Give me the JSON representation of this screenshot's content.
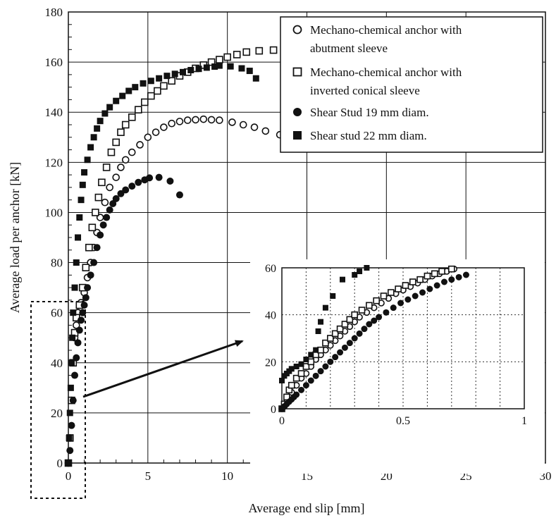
{
  "chart_data": [
    {
      "type": "scatter",
      "xlabel": "Average end slip [mm]",
      "ylabel": "Average load per anchor [kN]",
      "xlim": [
        0,
        30
      ],
      "ylim": [
        0,
        180
      ],
      "x_ticks": [
        "0",
        "5",
        "10",
        "15",
        "20",
        "25",
        "30"
      ],
      "y_ticks": [
        "0",
        "20",
        "40",
        "60",
        "80",
        "100",
        "120",
        "140",
        "160",
        "180"
      ],
      "grid": true,
      "legend_position": "top-right",
      "series": [
        {
          "name": "Mechano-chemical anchor with abutment sleeve",
          "marker": "open-circle",
          "points": [
            [
              0,
              0
            ],
            [
              0.1,
              10
            ],
            [
              0.2,
              25
            ],
            [
              0.3,
              40
            ],
            [
              0.4,
              50
            ],
            [
              0.5,
              55
            ],
            [
              0.6,
              60
            ],
            [
              0.8,
              64
            ],
            [
              1.0,
              68
            ],
            [
              1.2,
              74
            ],
            [
              1.4,
              80
            ],
            [
              1.6,
              86
            ],
            [
              1.8,
              92
            ],
            [
              2.0,
              98
            ],
            [
              2.3,
              104
            ],
            [
              2.6,
              110
            ],
            [
              3.0,
              114
            ],
            [
              3.3,
              118
            ],
            [
              3.6,
              121
            ],
            [
              4.0,
              124
            ],
            [
              4.5,
              127
            ],
            [
              5.0,
              130
            ],
            [
              5.5,
              132
            ],
            [
              6.0,
              134
            ],
            [
              6.5,
              135.5
            ],
            [
              7.0,
              136.3
            ],
            [
              7.5,
              136.8
            ],
            [
              8.0,
              137
            ],
            [
              8.5,
              137.2
            ],
            [
              9.0,
              137
            ],
            [
              9.5,
              136.8
            ],
            [
              10.3,
              136
            ],
            [
              11.0,
              135
            ],
            [
              11.7,
              134
            ],
            [
              12.4,
              132.5
            ],
            [
              13.3,
              131
            ]
          ]
        },
        {
          "name": "Mechano-chemical anchor with inverted conical sleeve",
          "marker": "open-square",
          "points": [
            [
              0,
              0
            ],
            [
              0.1,
              10
            ],
            [
              0.2,
              25
            ],
            [
              0.3,
              40
            ],
            [
              0.4,
              52
            ],
            [
              0.5,
              58
            ],
            [
              0.7,
              63
            ],
            [
              0.9,
              70
            ],
            [
              1.1,
              78
            ],
            [
              1.3,
              86
            ],
            [
              1.5,
              94
            ],
            [
              1.7,
              100
            ],
            [
              1.9,
              106
            ],
            [
              2.1,
              112
            ],
            [
              2.4,
              118
            ],
            [
              2.7,
              124
            ],
            [
              3.0,
              128
            ],
            [
              3.3,
              132
            ],
            [
              3.6,
              135
            ],
            [
              4.0,
              138
            ],
            [
              4.4,
              141
            ],
            [
              4.8,
              144
            ],
            [
              5.2,
              146.5
            ],
            [
              5.6,
              148.5
            ],
            [
              6.0,
              150.5
            ],
            [
              6.5,
              152.5
            ],
            [
              7.0,
              154.5
            ],
            [
              7.5,
              156
            ],
            [
              8.0,
              157.5
            ],
            [
              8.5,
              158.8
            ],
            [
              9.0,
              160
            ],
            [
              9.5,
              161
            ],
            [
              10.0,
              162
            ],
            [
              10.6,
              163
            ],
            [
              11.2,
              164
            ],
            [
              12.0,
              164.5
            ],
            [
              12.9,
              164.8
            ]
          ]
        },
        {
          "name": "Shear Stud 19 mm diam.",
          "marker": "filled-circle",
          "points": [
            [
              0,
              0
            ],
            [
              0.1,
              5
            ],
            [
              0.2,
              15
            ],
            [
              0.3,
              25
            ],
            [
              0.4,
              35
            ],
            [
              0.5,
              42
            ],
            [
              0.6,
              48
            ],
            [
              0.7,
              53
            ],
            [
              0.8,
              57
            ],
            [
              0.9,
              60
            ],
            [
              1.0,
              63
            ],
            [
              1.1,
              66
            ],
            [
              1.2,
              70
            ],
            [
              1.4,
              75
            ],
            [
              1.6,
              80
            ],
            [
              1.8,
              86
            ],
            [
              2.0,
              91
            ],
            [
              2.2,
              95
            ],
            [
              2.4,
              98
            ],
            [
              2.6,
              101
            ],
            [
              2.8,
              103.5
            ],
            [
              3.0,
              105.5
            ],
            [
              3.3,
              107.5
            ],
            [
              3.6,
              109
            ],
            [
              4.0,
              110.5
            ],
            [
              4.4,
              112
            ],
            [
              4.8,
              113
            ],
            [
              5.1,
              113.8
            ],
            [
              5.7,
              114
            ],
            [
              6.4,
              112.5
            ],
            [
              7.0,
              107
            ]
          ]
        },
        {
          "name": "Shear stud 22 mm diam.",
          "marker": "filled-square",
          "points": [
            [
              0,
              0
            ],
            [
              0.05,
              10
            ],
            [
              0.1,
              20
            ],
            [
              0.15,
              30
            ],
            [
              0.2,
              40
            ],
            [
              0.25,
              50
            ],
            [
              0.3,
              60
            ],
            [
              0.4,
              70
            ],
            [
              0.5,
              80
            ],
            [
              0.6,
              90
            ],
            [
              0.7,
              98
            ],
            [
              0.8,
              105
            ],
            [
              0.9,
              111
            ],
            [
              1.0,
              116
            ],
            [
              1.2,
              121
            ],
            [
              1.4,
              126
            ],
            [
              1.6,
              130
            ],
            [
              1.8,
              133.5
            ],
            [
              2.0,
              136.5
            ],
            [
              2.3,
              139.5
            ],
            [
              2.6,
              142
            ],
            [
              3.0,
              144.5
            ],
            [
              3.4,
              146.5
            ],
            [
              3.8,
              148.5
            ],
            [
              4.2,
              150
            ],
            [
              4.7,
              151.5
            ],
            [
              5.2,
              152.5
            ],
            [
              5.7,
              153.5
            ],
            [
              6.2,
              154.5
            ],
            [
              6.7,
              155.3
            ],
            [
              7.2,
              156
            ],
            [
              7.7,
              156.8
            ],
            [
              8.2,
              157.3
            ],
            [
              8.7,
              157.8
            ],
            [
              9.2,
              158.2
            ],
            [
              9.5,
              158.6
            ],
            [
              10.2,
              158.3
            ],
            [
              10.9,
              157.5
            ],
            [
              11.4,
              156.5
            ],
            [
              11.8,
              153.5
            ]
          ]
        }
      ]
    },
    {
      "type": "scatter",
      "xlim": [
        0,
        1
      ],
      "ylim": [
        0,
        60
      ],
      "x_ticks": [
        "0",
        "0.5",
        "1"
      ],
      "y_ticks": [
        "0",
        "20",
        "40",
        "60"
      ],
      "grid": true,
      "series": [
        {
          "marker": "open-circle",
          "points": [
            [
              0.0,
              0
            ],
            [
              0.01,
              1
            ],
            [
              0.02,
              3
            ],
            [
              0.03,
              5
            ],
            [
              0.04,
              7
            ],
            [
              0.06,
              10
            ],
            [
              0.08,
              13
            ],
            [
              0.1,
              15
            ],
            [
              0.12,
              18
            ],
            [
              0.14,
              21
            ],
            [
              0.16,
              23
            ],
            [
              0.18,
              25
            ],
            [
              0.2,
              27
            ],
            [
              0.22,
              29
            ],
            [
              0.24,
              31
            ],
            [
              0.26,
              33
            ],
            [
              0.28,
              35
            ],
            [
              0.3,
              37
            ],
            [
              0.32,
              39
            ],
            [
              0.35,
              41
            ],
            [
              0.38,
              43
            ],
            [
              0.41,
              45
            ],
            [
              0.44,
              47
            ],
            [
              0.47,
              49
            ],
            [
              0.5,
              50.5
            ],
            [
              0.53,
              52
            ],
            [
              0.56,
              53.5
            ],
            [
              0.59,
              55
            ],
            [
              0.62,
              56.5
            ],
            [
              0.65,
              57.5
            ],
            [
              0.68,
              58.5
            ],
            [
              0.71,
              59.5
            ]
          ]
        },
        {
          "marker": "open-square",
          "points": [
            [
              0.0,
              0
            ],
            [
              0.01,
              2
            ],
            [
              0.02,
              5
            ],
            [
              0.03,
              8
            ],
            [
              0.04,
              10
            ],
            [
              0.06,
              13
            ],
            [
              0.08,
              15
            ],
            [
              0.1,
              18
            ],
            [
              0.12,
              20
            ],
            [
              0.14,
              23
            ],
            [
              0.16,
              25
            ],
            [
              0.18,
              28
            ],
            [
              0.2,
              30
            ],
            [
              0.22,
              32
            ],
            [
              0.24,
              34
            ],
            [
              0.26,
              36
            ],
            [
              0.28,
              38
            ],
            [
              0.3,
              40
            ],
            [
              0.33,
              42
            ],
            [
              0.36,
              44
            ],
            [
              0.39,
              46
            ],
            [
              0.42,
              48
            ],
            [
              0.45,
              49.5
            ],
            [
              0.48,
              51
            ],
            [
              0.51,
              52.5
            ],
            [
              0.54,
              54
            ],
            [
              0.57,
              55
            ],
            [
              0.6,
              56.5
            ],
            [
              0.63,
              57.5
            ],
            [
              0.66,
              58.5
            ],
            [
              0.7,
              59.5
            ]
          ]
        },
        {
          "marker": "filled-circle",
          "points": [
            [
              0.0,
              0
            ],
            [
              0.01,
              1
            ],
            [
              0.02,
              2
            ],
            [
              0.03,
              3
            ],
            [
              0.04,
              4
            ],
            [
              0.05,
              5
            ],
            [
              0.06,
              6
            ],
            [
              0.08,
              8
            ],
            [
              0.1,
              10
            ],
            [
              0.12,
              12
            ],
            [
              0.14,
              14
            ],
            [
              0.16,
              16
            ],
            [
              0.18,
              18
            ],
            [
              0.2,
              20
            ],
            [
              0.22,
              22
            ],
            [
              0.24,
              24
            ],
            [
              0.26,
              26
            ],
            [
              0.28,
              28
            ],
            [
              0.3,
              30
            ],
            [
              0.32,
              32
            ],
            [
              0.34,
              34
            ],
            [
              0.36,
              36
            ],
            [
              0.38,
              37.5
            ],
            [
              0.4,
              39
            ],
            [
              0.43,
              41
            ],
            [
              0.46,
              43
            ],
            [
              0.49,
              45
            ],
            [
              0.52,
              46.5
            ],
            [
              0.55,
              48
            ],
            [
              0.58,
              49.5
            ],
            [
              0.61,
              51
            ],
            [
              0.64,
              52.5
            ],
            [
              0.67,
              54
            ],
            [
              0.7,
              55
            ],
            [
              0.73,
              56
            ],
            [
              0.76,
              57
            ]
          ]
        },
        {
          "marker": "filled-square",
          "points": [
            [
              0.0,
              12
            ],
            [
              0.01,
              14
            ],
            [
              0.02,
              15
            ],
            [
              0.03,
              16
            ],
            [
              0.04,
              17
            ],
            [
              0.06,
              18
            ],
            [
              0.08,
              19
            ],
            [
              0.1,
              21
            ],
            [
              0.12,
              23
            ],
            [
              0.14,
              25
            ],
            [
              0.15,
              33
            ],
            [
              0.16,
              37
            ],
            [
              0.18,
              43
            ],
            [
              0.21,
              48
            ],
            [
              0.25,
              55
            ],
            [
              0.3,
              57
            ],
            [
              0.32,
              58.5
            ],
            [
              0.35,
              60
            ]
          ]
        }
      ]
    }
  ]
}
